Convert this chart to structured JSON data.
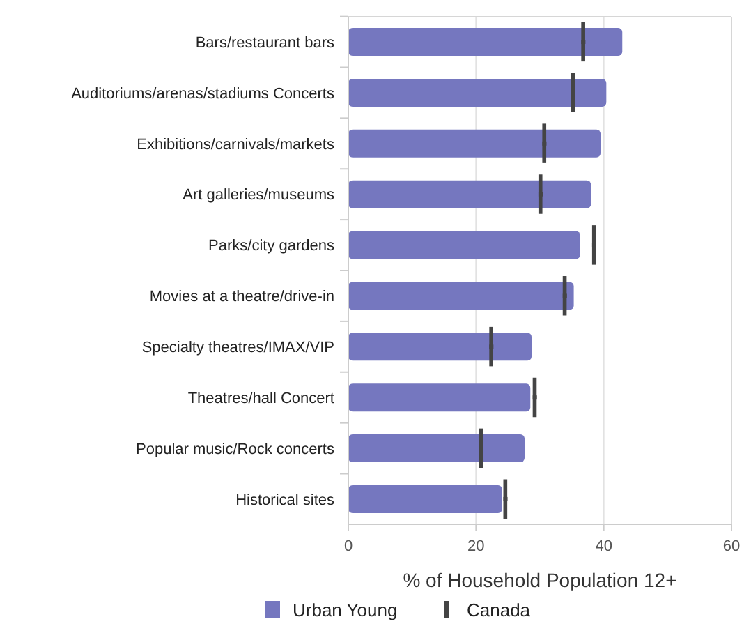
{
  "chart_data": {
    "type": "bar",
    "orientation": "horizontal",
    "xlabel": "% of Household Population 12+",
    "categories": [
      "Bars/restaurant bars",
      "Auditoriums/arenas/stadiums Concerts",
      "Exhibitions/carnivals/markets",
      "Art galleries/museums",
      "Parks/city gardens",
      "Movies at a theatre/drive-in",
      "Specialty theatres/IMAX/VIP",
      "Theatres/hall Concert",
      "Popular music/Rock concerts",
      "Historical sites"
    ],
    "series": [
      {
        "name": "Urban Young",
        "color": "#7577bf",
        "values": [
          42.9,
          40.4,
          39.5,
          38.0,
          36.3,
          35.3,
          28.7,
          28.5,
          27.6,
          24.1
        ]
      },
      {
        "name": "Canada",
        "type": "scatter",
        "color": "#444444",
        "x": [
          "Bars/restaurant bars",
          "Auditoriums/arenas/stadiums Concerts",
          "Exhibitions/carnivals/markets",
          "Art galleries/museums",
          "Parks/city gardens",
          "Movies at a theatre/drive-in",
          "Specialty theatres/IMAX/VIP",
          "Theatres/hall Concert",
          "Popular music/Rock concerts",
          "Historical sites"
        ],
        "values": [
          36.8,
          35.2,
          30.7,
          30.1,
          38.5,
          33.9,
          22.4,
          29.2,
          20.8,
          24.6
        ]
      }
    ],
    "xlim": [
      0,
      60
    ],
    "xticks": [
      0,
      20,
      40,
      60
    ],
    "grid": "x",
    "legend": "bottom"
  }
}
